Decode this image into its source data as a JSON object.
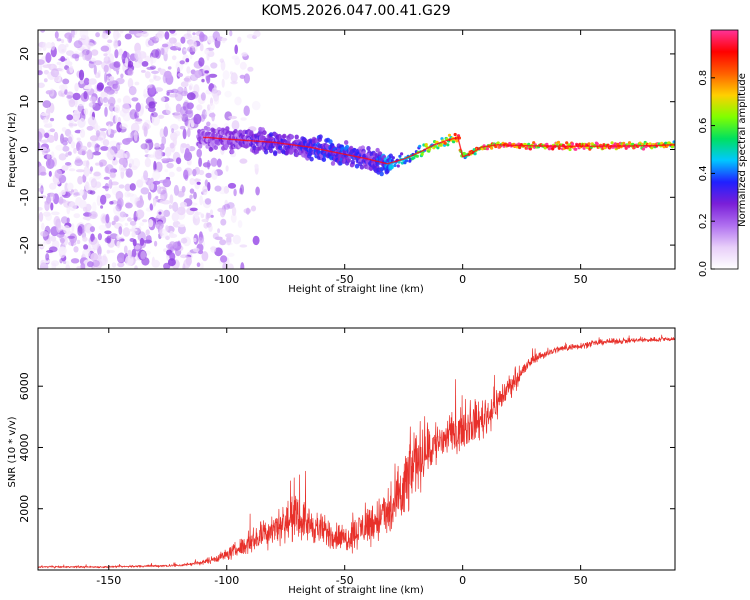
{
  "title": "KOM5.2026.047.00.41.G29",
  "colors": {
    "snr_line": "#e8302a",
    "frame": "#000000",
    "colormap": [
      "#ffffff",
      "#e8cff9",
      "#b070f0",
      "#7a1fd8",
      "#2020ff",
      "#00c8ff",
      "#00e060",
      "#80ff00",
      "#ffd000",
      "#ff6000",
      "#ff0000",
      "#ff3399"
    ]
  },
  "chart_data": [
    {
      "type": "heatmap",
      "name": "spectrogram",
      "xlabel": "Height of straight line (km)",
      "ylabel": "Frequency (Hz)",
      "xlim": [
        -180,
        90
      ],
      "ylim": [
        -25,
        25
      ],
      "xticks": [
        -150,
        -100,
        -50,
        0,
        50
      ],
      "yticks": [
        -20,
        -10,
        0,
        10,
        20
      ],
      "xtick_labels": [
        "-150",
        "-100",
        "-50",
        "0",
        "50"
      ],
      "ytick_labels": [
        "-20",
        "-10",
        "0",
        "10",
        "20"
      ],
      "ridge": {
        "x": [
          -108,
          -95,
          -80,
          -65,
          -50,
          -40,
          -32,
          -25,
          -18,
          -12,
          -6,
          -2,
          0,
          3,
          8,
          15,
          25,
          40,
          60,
          80,
          90
        ],
        "y": [
          2.5,
          2.0,
          1.5,
          0.5,
          -1.0,
          -2.0,
          -3.0,
          -2.0,
          -0.5,
          1.0,
          2.0,
          2.5,
          -1.5,
          -1.0,
          0.5,
          1.0,
          0.8,
          0.7,
          0.7,
          0.8,
          1.0
        ],
        "amplitude": [
          0.22,
          0.25,
          0.3,
          0.32,
          0.35,
          0.3,
          0.4,
          0.45,
          0.55,
          0.65,
          0.75,
          0.85,
          0.6,
          0.75,
          0.85,
          0.88,
          0.9,
          0.95,
          0.95,
          0.92,
          0.7
        ]
      },
      "colorbar": {
        "label": "Normalized spectral amplitude",
        "range": [
          0,
          1
        ],
        "ticks": [
          0.0,
          0.2,
          0.4,
          0.6,
          0.8
        ],
        "tick_labels": [
          "0.0",
          "0.2",
          "0.4",
          "0.6",
          "0.8"
        ]
      }
    },
    {
      "type": "line",
      "name": "snr",
      "xlabel": "Height of straight line (km)",
      "ylabel": "SNR (10 * v/v)",
      "xlim": [
        -180,
        90
      ],
      "ylim": [
        0,
        7900
      ],
      "xticks": [
        -150,
        -100,
        -50,
        0,
        50
      ],
      "yticks": [
        2000,
        4000,
        6000
      ],
      "xtick_labels": [
        "-150",
        "-100",
        "-50",
        "0",
        "50"
      ],
      "ytick_labels": [
        "2000",
        "4000",
        "6000"
      ],
      "envelope": {
        "x": [
          -180,
          -150,
          -120,
          -110,
          -100,
          -90,
          -80,
          -70,
          -60,
          -50,
          -40,
          -30,
          -25,
          -20,
          -10,
          0,
          10,
          20,
          30,
          40,
          60,
          90
        ],
        "mean": [
          100,
          100,
          150,
          250,
          500,
          900,
          1400,
          1700,
          1300,
          1000,
          1500,
          1900,
          2600,
          3600,
          4200,
          4600,
          5000,
          6000,
          6900,
          7200,
          7450,
          7550
        ],
        "fluct": [
          40,
          40,
          60,
          100,
          250,
          500,
          800,
          900,
          700,
          600,
          900,
          1200,
          1700,
          1500,
          1000,
          800,
          900,
          500,
          200,
          150,
          120,
          100
        ]
      }
    }
  ]
}
